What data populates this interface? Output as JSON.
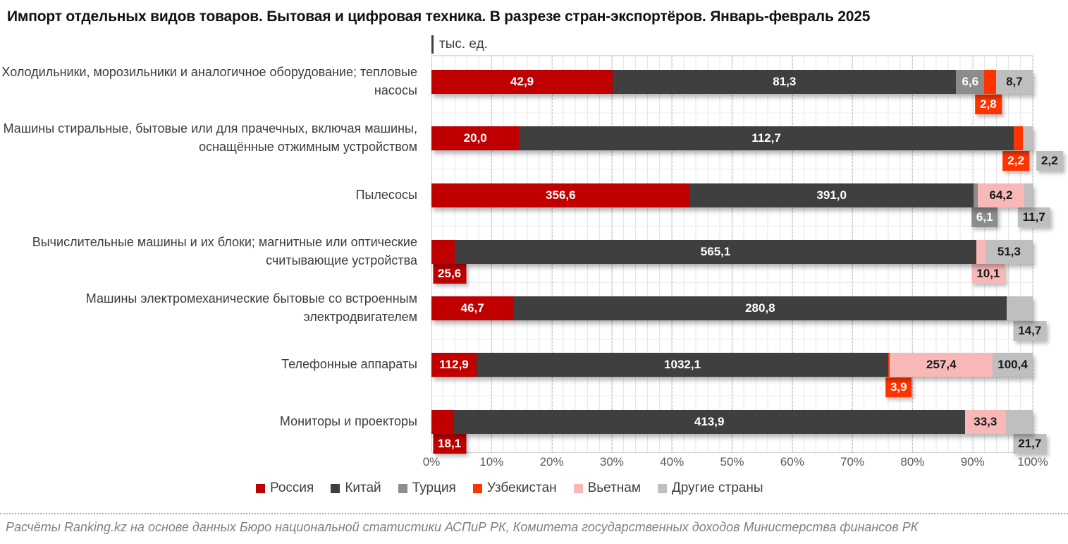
{
  "header": {
    "title": "Импорт отдельных видов товаров. Бытовая и цифровая техника. В разрезе стран-экспортёров. Январь-февраль 2025"
  },
  "footer": {
    "source": "Расчёты Ranking.kz на основе данных Бюро национальной статистики АСПиР РК, Комитета государственных доходов Министерства финансов РК"
  },
  "chart_data": {
    "type": "bar",
    "subtype": "horizontal-100pct-stacked",
    "unit_label": "тыс. ед.",
    "x_ticks": [
      "0%",
      "10%",
      "20%",
      "30%",
      "40%",
      "50%",
      "60%",
      "70%",
      "80%",
      "90%",
      "100%"
    ],
    "grid": "on",
    "legend_position": "bottom",
    "legend": [
      {
        "name": "Россия",
        "color": "#C00000",
        "text_color": "#FFFFFF"
      },
      {
        "name": "Китай",
        "color": "#3F3F3F",
        "text_color": "#FFFFFF"
      },
      {
        "name": "Турция",
        "color": "#8C8C8C",
        "text_color": "#FFFFFF"
      },
      {
        "name": "Узбекистан",
        "color": "#FF3300",
        "text_color": "#FFFFFF"
      },
      {
        "name": "Вьетнам",
        "color": "#F8B8B8",
        "text_color": "#1a1a1a"
      },
      {
        "name": "Другие страны",
        "color": "#BFBFBF",
        "text_color": "#1a1a1a"
      }
    ],
    "rows": [
      {
        "category": "Холодильники, морозильники и аналогичное оборудование; тепловые насосы",
        "segments": [
          {
            "series": "Россия",
            "value": 42.9,
            "label": "42,9",
            "label_pos": "in"
          },
          {
            "series": "Китай",
            "value": 81.3,
            "label": "81,3",
            "label_pos": "in"
          },
          {
            "series": "Турция",
            "value": 6.6,
            "label": "6,6",
            "label_pos": "in"
          },
          {
            "series": "Узбекистан",
            "value": 2.8,
            "label": "2,8",
            "label_pos": "below",
            "below_pct": 92.6
          },
          {
            "series": "Другие страны",
            "value": 8.7,
            "label": "8,7",
            "label_pos": "in"
          }
        ]
      },
      {
        "category": "Машины стиральные, бытовые или для прачечных, включая машины, оснащённые отжимным устройством",
        "segments": [
          {
            "series": "Россия",
            "value": 20.0,
            "label": "20,0",
            "label_pos": "in"
          },
          {
            "series": "Китай",
            "value": 112.7,
            "label": "112,7",
            "label_pos": "in"
          },
          {
            "series": "Узбекистан",
            "value": 2.2,
            "label": "2,2",
            "label_pos": "below",
            "below_pct": 97.2
          },
          {
            "series": "Другие страны",
            "value": 2.2,
            "label": "2,2",
            "label_pos": "below",
            "below_pct": 102.8
          }
        ]
      },
      {
        "category": "Пылесосы",
        "segments": [
          {
            "series": "Россия",
            "value": 356.6,
            "label": "356,6",
            "label_pos": "in"
          },
          {
            "series": "Китай",
            "value": 391.0,
            "label": "391,0",
            "label_pos": "in"
          },
          {
            "series": "Турция",
            "value": 6.1,
            "label": "6,1",
            "label_pos": "below",
            "below_pct": 92.0
          },
          {
            "series": "Вьетнам",
            "value": 64.2,
            "label": "64,2",
            "label_pos": "in"
          },
          {
            "series": "Другие страны",
            "value": 11.7,
            "label": "11,7",
            "label_pos": "below",
            "below_pct": 100.2
          }
        ]
      },
      {
        "category": "Вычислительные машины и их блоки; магнитные или оптические считывающие устройства",
        "segments": [
          {
            "series": "Россия",
            "value": 25.6,
            "label": "25,6",
            "label_pos": "below",
            "below_pct": 3.0
          },
          {
            "series": "Китай",
            "value": 565.1,
            "label": "565,1",
            "label_pos": "in"
          },
          {
            "series": "Вьетнам",
            "value": 10.1,
            "label": "10,1",
            "label_pos": "below",
            "below_pct": 92.6
          },
          {
            "series": "Другие страны",
            "value": 51.3,
            "label": "51,3",
            "label_pos": "in"
          }
        ]
      },
      {
        "category": "Машины электромеханические бытовые со встроенным электродвигателем",
        "segments": [
          {
            "series": "Россия",
            "value": 46.7,
            "label": "46,7",
            "label_pos": "in"
          },
          {
            "series": "Китай",
            "value": 280.8,
            "label": "280,8",
            "label_pos": "in"
          },
          {
            "series": "Другие страны",
            "value": 14.7,
            "label": "14,7",
            "label_pos": "below",
            "below_pct": 99.5
          }
        ]
      },
      {
        "category": "Телефонные аппараты",
        "segments": [
          {
            "series": "Россия",
            "value": 112.9,
            "label": "112,9",
            "label_pos": "in"
          },
          {
            "series": "Китай",
            "value": 1032.1,
            "label": "1032,1",
            "label_pos": "in"
          },
          {
            "series": "Узбекистан",
            "value": 3.9,
            "label": "3,9",
            "label_pos": "below",
            "below_pct": 77.7
          },
          {
            "series": "Вьетнам",
            "value": 257.4,
            "label": "257,4",
            "label_pos": "in"
          },
          {
            "series": "Другие страны",
            "value": 100.4,
            "label": "100,4",
            "label_pos": "in"
          }
        ]
      },
      {
        "category": "Мониторы и проекторы",
        "segments": [
          {
            "series": "Россия",
            "value": 18.1,
            "label": "18,1",
            "label_pos": "below",
            "below_pct": 3.0
          },
          {
            "series": "Китай",
            "value": 413.9,
            "label": "413,9",
            "label_pos": "in"
          },
          {
            "series": "Вьетнам",
            "value": 33.3,
            "label": "33,3",
            "label_pos": "in"
          },
          {
            "series": "Другие страны",
            "value": 21.7,
            "label": "21,7",
            "label_pos": "below",
            "below_pct": 99.5
          }
        ]
      }
    ]
  }
}
